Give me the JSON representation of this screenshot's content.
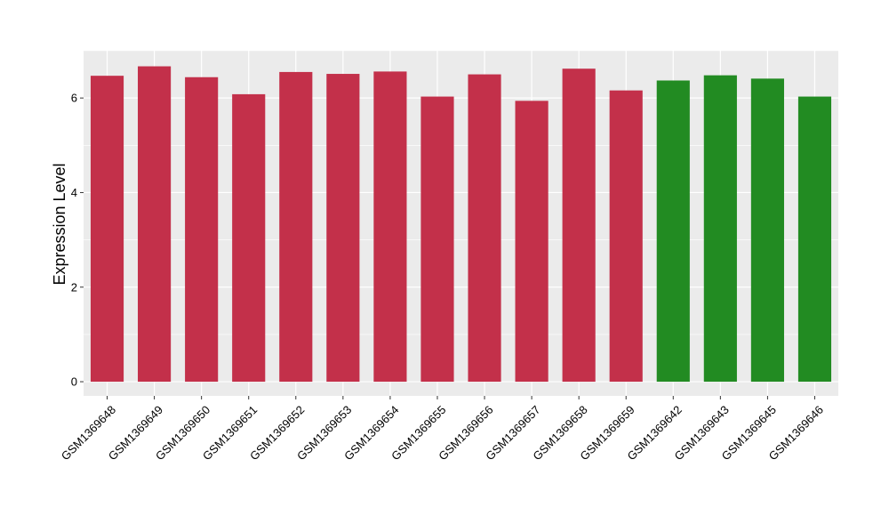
{
  "chart_data": {
    "type": "bar",
    "title": "",
    "xlabel": "",
    "ylabel": "Expression Level",
    "ylim": [
      -0.3,
      7.0
    ],
    "yticks": [
      0,
      2,
      4,
      6
    ],
    "grid": true,
    "legend": "none",
    "categories": [
      "GSM1369648",
      "GSM1369649",
      "GSM1369650",
      "GSM1369651",
      "GSM1369652",
      "GSM1369653",
      "GSM1369654",
      "GSM1369655",
      "GSM1369656",
      "GSM1369657",
      "GSM1369658",
      "GSM1369659",
      "GSM1369642",
      "GSM1369643",
      "GSM1369645",
      "GSM1369646"
    ],
    "values": [
      6.47,
      6.67,
      6.44,
      6.08,
      6.55,
      6.51,
      6.56,
      6.03,
      6.5,
      5.94,
      6.62,
      6.16,
      6.37,
      6.48,
      6.41,
      6.03
    ],
    "bar_colors": [
      "#C3304A",
      "#C3304A",
      "#C3304A",
      "#C3304A",
      "#C3304A",
      "#C3304A",
      "#C3304A",
      "#C3304A",
      "#C3304A",
      "#C3304A",
      "#C3304A",
      "#C3304A",
      "#228B22",
      "#228B22",
      "#228B22",
      "#228B22"
    ],
    "panel_color": "#EBEBEB",
    "grid_color": "#FFFFFF"
  }
}
